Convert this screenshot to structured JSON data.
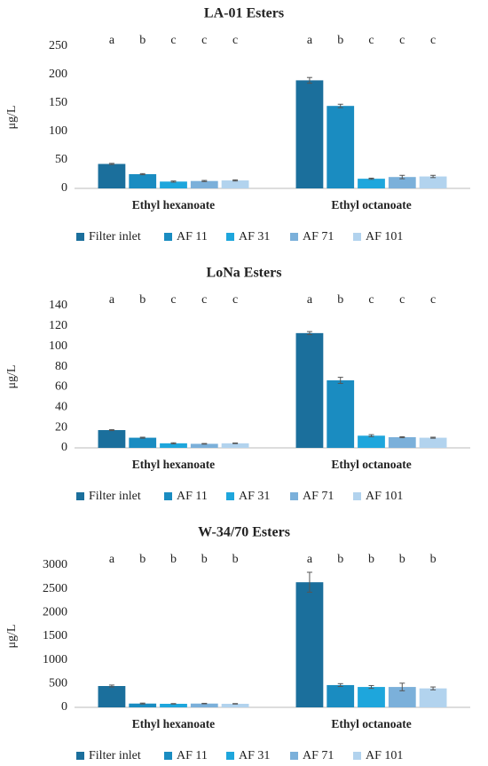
{
  "chart_data": [
    {
      "type": "bar",
      "title": "LA-01 Esters",
      "ylabel": "μg/L",
      "categories": [
        "Ethyl hexanoate",
        "Ethyl octanoate"
      ],
      "ylim": [
        0,
        250
      ],
      "yticks": [
        0,
        50,
        100,
        150,
        200,
        250
      ],
      "grid": false,
      "legend": "bottom",
      "series": [
        {
          "name": "Filter inlet",
          "color": "#1b6f9c",
          "values": [
            43,
            190
          ],
          "errors": [
            1,
            5
          ],
          "letters": [
            "a",
            "a"
          ]
        },
        {
          "name": "AF 11",
          "color": "#1a8cc1",
          "values": [
            25,
            145
          ],
          "errors": [
            1,
            3
          ],
          "letters": [
            "b",
            "b"
          ]
        },
        {
          "name": "AF 31",
          "color": "#1ea6dc",
          "values": [
            12,
            17
          ],
          "errors": [
            1,
            1
          ],
          "letters": [
            "c",
            "c"
          ]
        },
        {
          "name": "AF 71",
          "color": "#7bb0da",
          "values": [
            13,
            20
          ],
          "errors": [
            1,
            3
          ],
          "letters": [
            "c",
            "c"
          ]
        },
        {
          "name": "AF 101",
          "color": "#b2d3ee",
          "values": [
            14,
            21
          ],
          "errors": [
            1,
            2
          ],
          "letters": [
            "c",
            "c"
          ]
        }
      ]
    },
    {
      "type": "bar",
      "title": "LoNa Esters",
      "ylabel": "μg/L",
      "categories": [
        "Ethyl hexanoate",
        "Ethyl octanoate"
      ],
      "ylim": [
        0,
        140
      ],
      "yticks": [
        0,
        20,
        40,
        60,
        80,
        100,
        120,
        140
      ],
      "grid": false,
      "legend": "bottom",
      "series": [
        {
          "name": "Filter inlet",
          "color": "#1b6f9c",
          "values": [
            17.5,
            113
          ],
          "errors": [
            0.5,
            1.5
          ],
          "letters": [
            "a",
            "a"
          ]
        },
        {
          "name": "AF 11",
          "color": "#1a8cc1",
          "values": [
            10,
            66.5
          ],
          "errors": [
            0.5,
            3
          ],
          "letters": [
            "b",
            "b"
          ]
        },
        {
          "name": "AF 31",
          "color": "#1ea6dc",
          "values": [
            4.5,
            12
          ],
          "errors": [
            0.5,
            1
          ],
          "letters": [
            "c",
            "c"
          ]
        },
        {
          "name": "AF 71",
          "color": "#7bb0da",
          "values": [
            4,
            10.5
          ],
          "errors": [
            0.3,
            0.5
          ],
          "letters": [
            "c",
            "c"
          ]
        },
        {
          "name": "AF 101",
          "color": "#b2d3ee",
          "values": [
            4.5,
            10
          ],
          "errors": [
            0.3,
            0.5
          ],
          "letters": [
            "c",
            "c"
          ]
        }
      ]
    },
    {
      "type": "bar",
      "title": "W-34/70 Esters",
      "ylabel": "μg/L",
      "categories": [
        "Ethyl hexanoate",
        "Ethyl octanoate"
      ],
      "ylim": [
        0,
        3000
      ],
      "yticks": [
        0,
        500,
        1000,
        1500,
        2000,
        2500,
        3000
      ],
      "grid": false,
      "legend": "bottom",
      "series": [
        {
          "name": "Filter inlet",
          "color": "#1b6f9c",
          "values": [
            450,
            2640
          ],
          "errors": [
            20,
            210
          ],
          "letters": [
            "a",
            "a"
          ]
        },
        {
          "name": "AF 11",
          "color": "#1a8cc1",
          "values": [
            80,
            470
          ],
          "errors": [
            10,
            30
          ],
          "letters": [
            "b",
            "b"
          ]
        },
        {
          "name": "AF 31",
          "color": "#1ea6dc",
          "values": [
            75,
            430
          ],
          "errors": [
            5,
            30
          ],
          "letters": [
            "b",
            "b"
          ]
        },
        {
          "name": "AF 71",
          "color": "#7bb0da",
          "values": [
            80,
            430
          ],
          "errors": [
            5,
            80
          ],
          "letters": [
            "b",
            "b"
          ]
        },
        {
          "name": "AF 101",
          "color": "#b2d3ee",
          "values": [
            75,
            400
          ],
          "errors": [
            5,
            30
          ],
          "letters": [
            "b",
            "b"
          ]
        }
      ]
    }
  ]
}
